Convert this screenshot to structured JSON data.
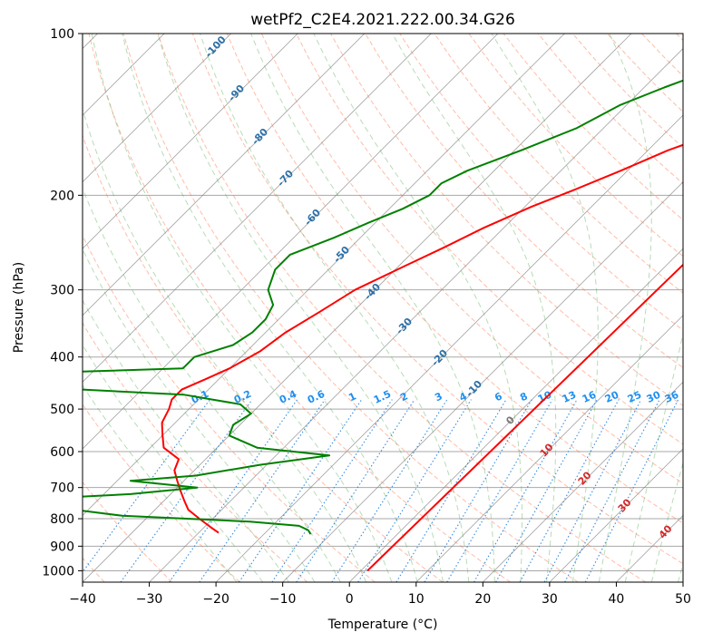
{
  "chart_data": {
    "type": "line",
    "title": "wetPf2_C2E4.2021.222.00.34.G26",
    "xlabel": "Temperature (°C)",
    "ylabel": "Pressure (hPa)",
    "xlim": [
      -40,
      50
    ],
    "ylim": [
      1050,
      100
    ],
    "y_scale": "log",
    "skew_deg": 45,
    "grid": true,
    "x_ticks": [
      -40,
      -30,
      -20,
      -10,
      0,
      10,
      20,
      30,
      40,
      50
    ],
    "y_ticks": [
      100,
      200,
      300,
      400,
      500,
      600,
      700,
      800,
      900,
      1000
    ],
    "series": [
      {
        "color": "#ff0000",
        "points": [
          [
            1000,
            1
          ],
          [
            100,
            3.5
          ],
          [
            112,
            0.4
          ],
          [
            125,
            -3
          ],
          [
            137,
            -7
          ],
          [
            150,
            -11
          ],
          [
            165,
            -17
          ],
          [
            180,
            -21
          ],
          [
            195,
            -25
          ],
          [
            210,
            -29
          ],
          [
            230,
            -33
          ],
          [
            250,
            -36
          ],
          [
            270,
            -39
          ],
          [
            300,
            -43
          ],
          [
            330,
            -45
          ],
          [
            360,
            -47
          ],
          [
            390,
            -48
          ],
          [
            420,
            -50
          ],
          [
            440,
            -52
          ],
          [
            460,
            -54
          ],
          [
            480,
            -54
          ],
          [
            500,
            -53
          ],
          [
            530,
            -52
          ],
          [
            560,
            -50
          ],
          [
            590,
            -48
          ],
          [
            620,
            -44
          ],
          [
            650,
            -43
          ],
          [
            680,
            -41
          ],
          [
            710,
            -39
          ],
          [
            740,
            -37
          ],
          [
            770,
            -35
          ],
          [
            800,
            -32
          ],
          [
            830,
            -29
          ],
          [
            850,
            -27
          ]
        ]
      },
      {
        "color": "#008000",
        "points": [
          [
            100,
            -9
          ],
          [
            108,
            -16
          ],
          [
            116,
            -22
          ],
          [
            126,
            -27
          ],
          [
            136,
            -31
          ],
          [
            150,
            -34
          ],
          [
            165,
            -39
          ],
          [
            180,
            -44
          ],
          [
            190,
            -46
          ],
          [
            200,
            -46
          ],
          [
            212,
            -48
          ],
          [
            225,
            -51
          ],
          [
            240,
            -54
          ],
          [
            258,
            -58
          ],
          [
            275,
            -58
          ],
          [
            300,
            -56
          ],
          [
            320,
            -53
          ],
          [
            340,
            -52
          ],
          [
            360,
            -52
          ],
          [
            380,
            -53
          ],
          [
            400,
            -57
          ],
          [
            420,
            -57
          ],
          [
            440,
            -106
          ],
          [
            445,
            -110
          ],
          [
            455,
            -77
          ],
          [
            470,
            -53
          ],
          [
            490,
            -43
          ],
          [
            510,
            -40
          ],
          [
            535,
            -41
          ],
          [
            560,
            -40
          ],
          [
            590,
            -34
          ],
          [
            610,
            -22
          ],
          [
            635,
            -31
          ],
          [
            665,
            -39
          ],
          [
            680,
            -48
          ],
          [
            700,
            -37
          ],
          [
            720,
            -46
          ],
          [
            735,
            -59
          ],
          [
            750,
            -56
          ],
          [
            770,
            -52
          ],
          [
            790,
            -44
          ],
          [
            810,
            -24
          ],
          [
            825,
            -16
          ],
          [
            840,
            -14
          ],
          [
            855,
            -13
          ]
        ]
      }
    ],
    "mixing_ratio_labels": [
      "0.1",
      "0.2",
      "0.4",
      "0.6",
      "1",
      "1.5",
      "2",
      "3",
      "4",
      "6",
      "8",
      "10",
      "13",
      "16",
      "20",
      "25",
      "30",
      "36"
    ],
    "mixing_ratio_values": [
      0.1,
      0.2,
      0.4,
      0.6,
      1,
      1.5,
      2,
      3,
      4,
      6,
      8,
      10,
      13,
      16,
      20,
      25,
      30,
      36
    ],
    "dry_adiabat_labels": [
      "-100",
      "-90",
      "-80",
      "-70",
      "-60",
      "-50",
      "-40",
      "-30",
      "-20",
      "-10",
      "0",
      "10",
      "20",
      "30",
      "40"
    ],
    "dry_adiabat_values": [
      -100,
      -90,
      -80,
      -70,
      -60,
      -50,
      -40,
      -30,
      -20,
      -10,
      0,
      10,
      20,
      30,
      40
    ],
    "colors": {
      "dry_adiabat": "#ff6a3d",
      "moist_adiabat": "#4aa84a",
      "mixing_ratio": "#1f7fe0",
      "isotherm": "#808080",
      "isobar": "#a8a8a8",
      "label_cold": "#2c70a8",
      "label_warm": "#d62728",
      "label_zero": "#777777",
      "label_mixing": "#1f8fef"
    }
  }
}
